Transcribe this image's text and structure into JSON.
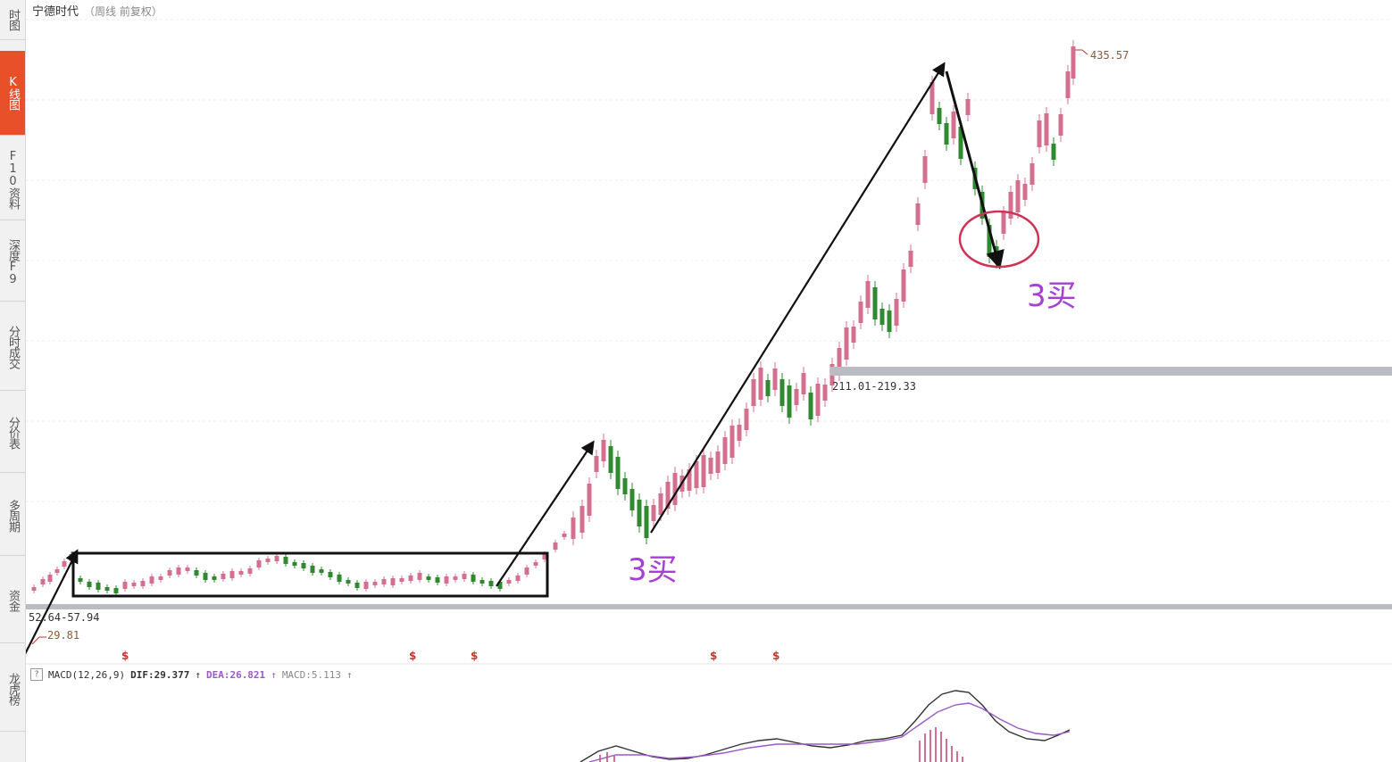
{
  "title": {
    "stock": "宁德时代",
    "period": "（周线 前复权）"
  },
  "sidebar": {
    "items": [
      {
        "label": "时图",
        "active": false
      },
      {
        "label": "K线图",
        "active": true
      },
      {
        "label": "F10资料",
        "active": false
      },
      {
        "label": "深度F9",
        "active": false
      },
      {
        "label": "分时成交",
        "active": false
      },
      {
        "label": "分价表",
        "active": false
      },
      {
        "label": "多周期",
        "active": false
      },
      {
        "label": "资金",
        "active": false
      },
      {
        "label": "龙虎榜",
        "active": false
      }
    ]
  },
  "chart": {
    "high_label": "435.57",
    "low_label": "29.81",
    "zone_labels": {
      "low_zone": "52.64-57.94",
      "upper_zone": "211.01-219.33"
    },
    "buy_annotations": [
      "3买",
      "3买"
    ],
    "event_marker": "$",
    "colors": {
      "up": "#d4708f",
      "down": "#2f8a2f",
      "arrow": "#111111",
      "annotation": "#a63fd6",
      "circle": "#cc3355",
      "zone_band": "#b9bcc0",
      "dif_line": "#333333",
      "dea_line": "#9b59c6"
    }
  },
  "macd": {
    "help": "?",
    "name": "MACD(12,26,9)",
    "dif_label": "DIF:29.377",
    "dea_label": "DEA:26.821",
    "macd_label": "MACD:5.113",
    "arrow": "↑"
  }
}
